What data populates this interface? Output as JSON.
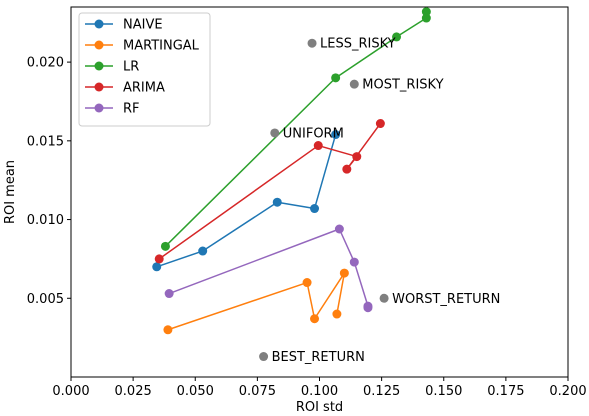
{
  "chart_data": {
    "type": "line",
    "xlabel": "ROI std",
    "ylabel": "ROI mean",
    "xlim": [
      0.0,
      0.2
    ],
    "ylim": [
      0.0,
      0.0235
    ],
    "xticks": [
      0.0,
      0.025,
      0.05,
      0.075,
      0.1,
      0.125,
      0.15,
      0.175,
      0.2
    ],
    "xtick_labels": [
      "0.000",
      "0.025",
      "0.050",
      "0.075",
      "0.100",
      "0.125",
      "0.150",
      "0.175",
      "0.200"
    ],
    "yticks": [
      0.005,
      0.01,
      0.015,
      0.02
    ],
    "ytick_labels": [
      "0.005",
      "0.010",
      "0.015",
      "0.020"
    ],
    "grid": false,
    "legend_position": "top-left",
    "series": [
      {
        "name": "NAIVE",
        "color": "#1f77b4",
        "points": [
          [
            0.0345,
            0.007
          ],
          [
            0.053,
            0.008
          ],
          [
            0.083,
            0.0111
          ],
          [
            0.098,
            0.0107
          ],
          [
            0.1065,
            0.0154
          ]
        ]
      },
      {
        "name": "MARTINGAL",
        "color": "#ff7f0e",
        "points": [
          [
            0.039,
            0.003
          ],
          [
            0.095,
            0.006
          ],
          [
            0.098,
            0.0037
          ],
          [
            0.11,
            0.0066
          ],
          [
            0.107,
            0.004
          ]
        ]
      },
      {
        "name": "LR",
        "color": "#2ca02c",
        "points": [
          [
            0.038,
            0.0083
          ],
          [
            0.1065,
            0.019
          ],
          [
            0.131,
            0.0216
          ],
          [
            0.143,
            0.0228
          ],
          [
            0.143,
            0.0232
          ]
        ]
      },
      {
        "name": "ARIMA",
        "color": "#d62728",
        "points": [
          [
            0.0355,
            0.0075
          ],
          [
            0.0995,
            0.0147
          ],
          [
            0.115,
            0.014
          ],
          [
            0.111,
            0.0132
          ],
          [
            0.1245,
            0.0161
          ]
        ]
      },
      {
        "name": "RF",
        "color": "#9467bd",
        "points": [
          [
            0.0395,
            0.0053
          ],
          [
            0.108,
            0.0094
          ],
          [
            0.114,
            0.0073
          ],
          [
            0.1195,
            0.0045
          ],
          [
            0.1195,
            0.0044
          ]
        ]
      }
    ],
    "reference_points": {
      "color": "#7f7f7f",
      "points": [
        {
          "label": "LESS_RISKY",
          "x": 0.097,
          "y": 0.0212
        },
        {
          "label": "MOST_RISKY",
          "x": 0.114,
          "y": 0.0186
        },
        {
          "label": "UNIFORM",
          "x": 0.082,
          "y": 0.0155
        },
        {
          "label": "WORST_RETURN",
          "x": 0.126,
          "y": 0.005
        },
        {
          "label": "BEST_RETURN",
          "x": 0.0775,
          "y": 0.0013
        }
      ]
    }
  }
}
